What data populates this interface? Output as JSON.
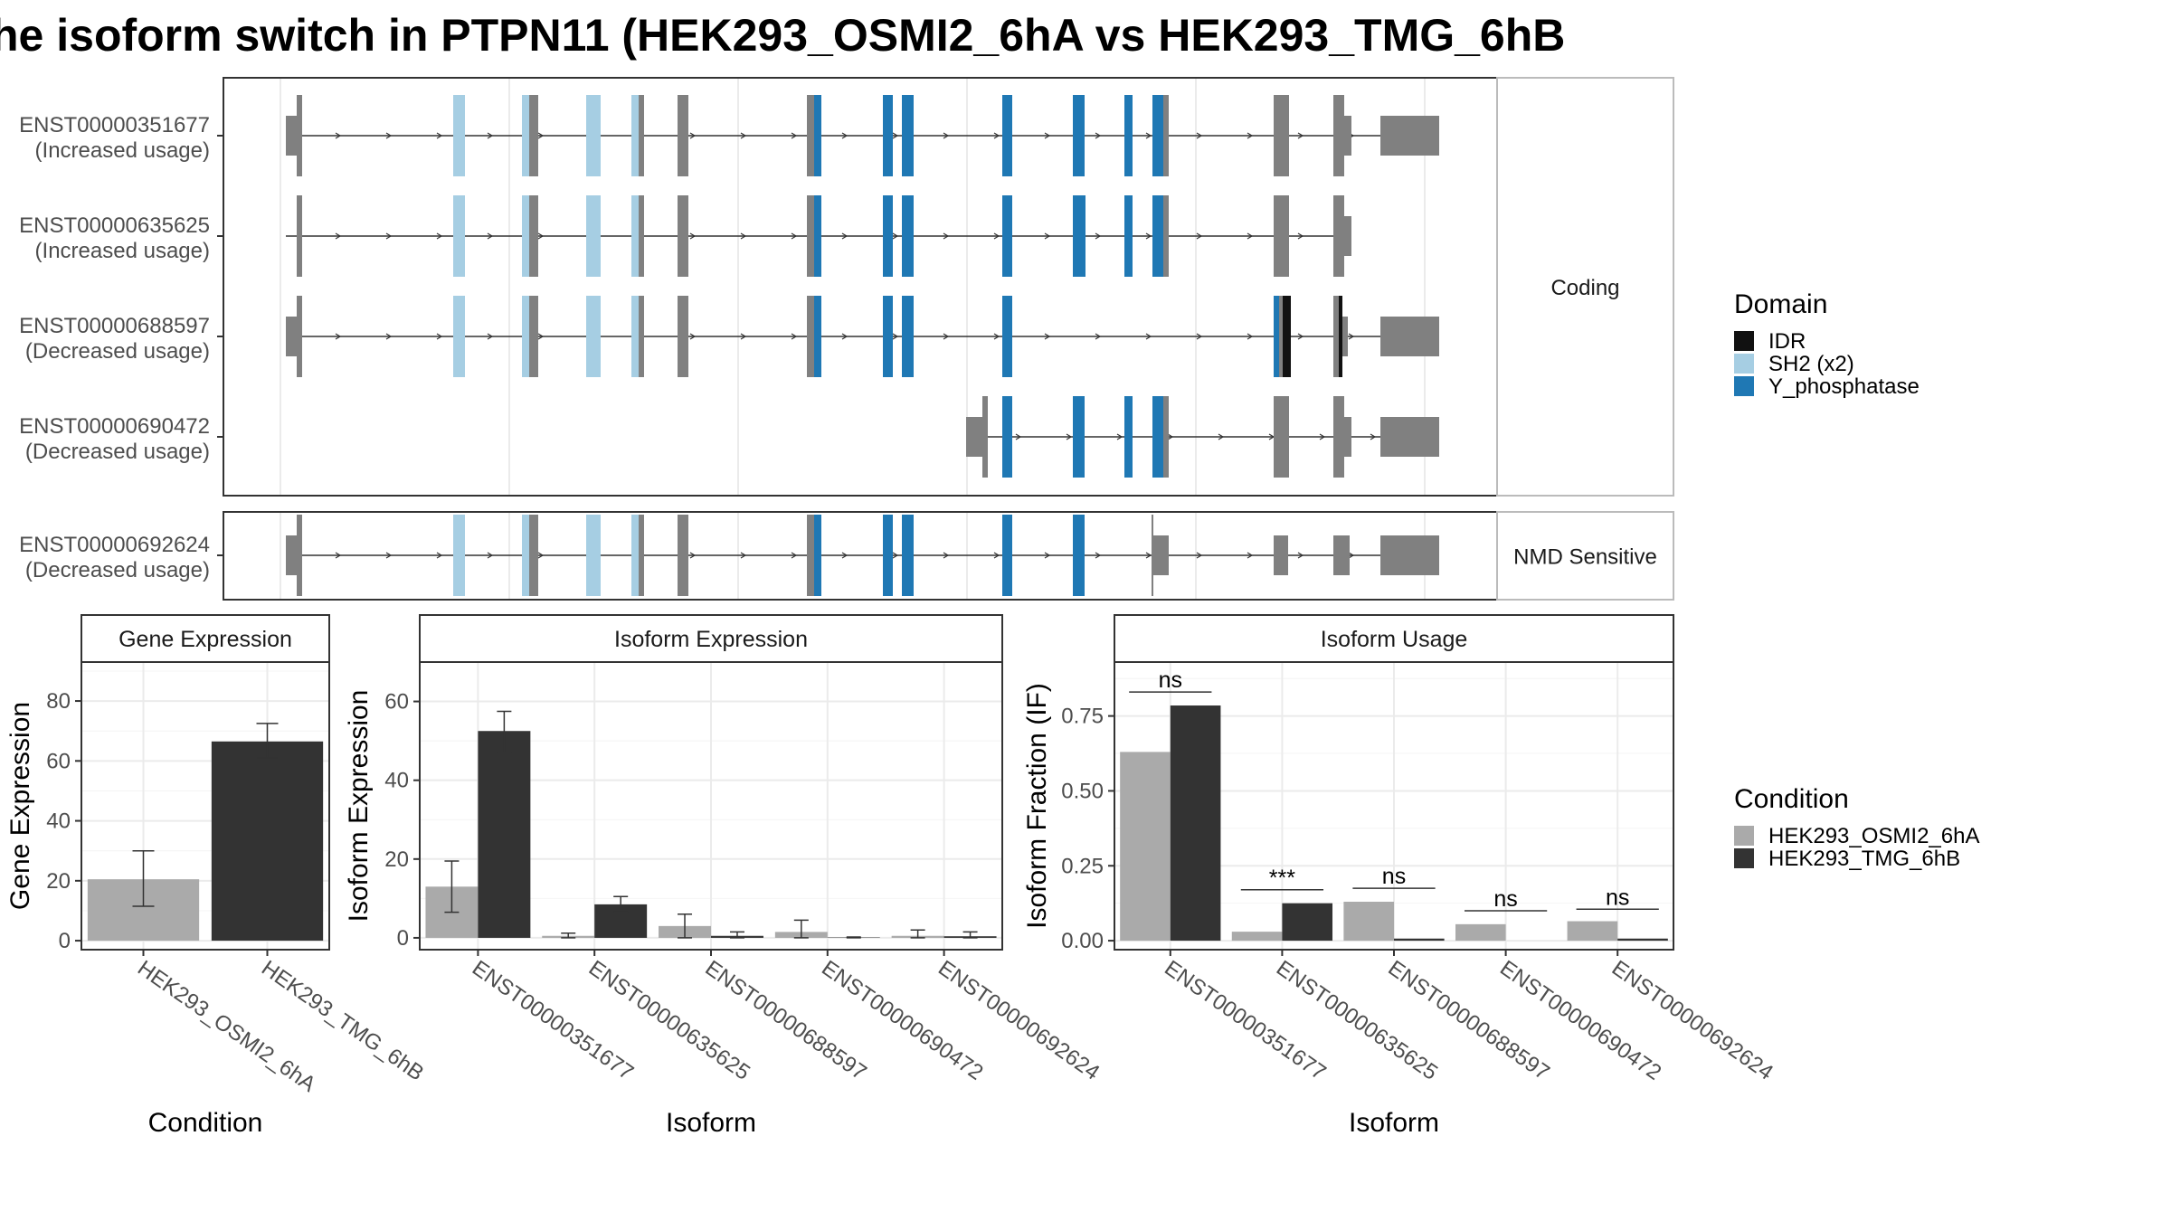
{
  "title": "he isoform switch in PTPN11 (HEK293_OSMI2_6hA vs HEK293_TMG_6hB",
  "colors": {
    "IDR": "#111111",
    "SH2": "#a6cee3",
    "Y_phosphatase": "#1f78b4",
    "exon": "#808080",
    "cond1": "#aaaaaa",
    "cond2": "#333333"
  },
  "transcript_panels": [
    {
      "strip": "Coding",
      "tracks": [
        {
          "id": "ENST00000351677",
          "usage": "(Increased usage)"
        },
        {
          "id": "ENST00000635625",
          "usage": "(Increased usage)"
        },
        {
          "id": "ENST00000688597",
          "usage": "(Decreased usage)"
        },
        {
          "id": "ENST00000690472",
          "usage": "(Decreased usage)"
        }
      ]
    },
    {
      "strip": "NMD Sensitive",
      "tracks": [
        {
          "id": "ENST00000692624",
          "usage": "(Decreased usage)"
        }
      ]
    }
  ],
  "domain_legend": {
    "title": "Domain",
    "items": [
      {
        "label": "IDR",
        "color": "#111111"
      },
      {
        "label": "SH2 (x2)",
        "color": "#a6cee3"
      },
      {
        "label": "Y_phosphatase",
        "color": "#1f78b4"
      }
    ]
  },
  "condition_legend": {
    "title": "Condition",
    "items": [
      {
        "label": "HEK293_OSMI2_6hA",
        "color": "#aaaaaa"
      },
      {
        "label": "HEK293_TMG_6hB",
        "color": "#333333"
      }
    ]
  },
  "chart_data": [
    {
      "type": "bar",
      "title": "Gene Expression",
      "xlabel": "Condition",
      "ylabel": "Gene Expression",
      "ylim": [
        -3,
        93
      ],
      "yticks": [
        0,
        20,
        40,
        60,
        80
      ],
      "yticklabels": [
        "0",
        "20",
        "40",
        "60",
        "80"
      ],
      "categories": [
        "HEK293_OSMI2_6hA",
        "HEK293_TMG_6hB"
      ],
      "bar_colors": [
        "#aaaaaa",
        "#333333"
      ],
      "values": [
        20.5,
        66.5
      ],
      "errors": [
        [
          11.5,
          30
        ],
        [
          61,
          72.5
        ]
      ],
      "grid": true
    },
    {
      "type": "bar",
      "title": "Isoform Expression",
      "xlabel": "Isoform",
      "ylabel": "Isoform Expression",
      "ylim": [
        -3,
        70
      ],
      "yticks": [
        0,
        20,
        40,
        60
      ],
      "yticklabels": [
        "0",
        "20",
        "40",
        "60"
      ],
      "categories": [
        "ENST00000351677",
        "ENST00000635625",
        "ENST00000688597",
        "ENST00000690472",
        "ENST00000692624"
      ],
      "series": [
        {
          "name": "HEK293_OSMI2_6hA",
          "color": "#aaaaaa",
          "values": [
            13,
            0.5,
            3,
            1.5,
            0.5
          ],
          "errors": [
            [
              6.5,
              19.5
            ],
            [
              0,
              1.2
            ],
            [
              0,
              6
            ],
            [
              0,
              4.5
            ],
            [
              0,
              2
            ]
          ]
        },
        {
          "name": "HEK293_TMG_6hB",
          "color": "#333333",
          "values": [
            52.5,
            8.5,
            0.5,
            0.1,
            0.4
          ],
          "errors": [
            [
              47,
              57.5
            ],
            [
              6.5,
              10.5
            ],
            [
              0,
              1.5
            ],
            [
              0,
              0.2
            ],
            [
              0,
              1.5
            ]
          ]
        }
      ],
      "grid": true
    },
    {
      "type": "bar",
      "title": "Isoform Usage",
      "xlabel": "Isoform",
      "ylabel": "Isoform Fraction (IF)",
      "ylim": [
        -0.03,
        0.93
      ],
      "yticks": [
        0,
        0.25,
        0.5,
        0.75
      ],
      "yticklabels": [
        "0.00",
        "0.25",
        "0.50",
        "0.75"
      ],
      "categories": [
        "ENST00000351677",
        "ENST00000635625",
        "ENST00000688597",
        "ENST00000690472",
        "ENST00000692624"
      ],
      "series": [
        {
          "name": "HEK293_OSMI2_6hA",
          "color": "#aaaaaa",
          "values": [
            0.63,
            0.03,
            0.13,
            0.055,
            0.065
          ]
        },
        {
          "name": "HEK293_TMG_6hB",
          "color": "#333333",
          "values": [
            0.785,
            0.125,
            0.007,
            0,
            0.007
          ]
        }
      ],
      "significance": [
        {
          "label": "ns",
          "y": 0.83
        },
        {
          "label": "***",
          "y": 0.17
        },
        {
          "label": "ns",
          "y": 0.175
        },
        {
          "label": "ns",
          "y": 0.1
        },
        {
          "label": "ns",
          "y": 0.105
        }
      ],
      "grid": true
    }
  ]
}
